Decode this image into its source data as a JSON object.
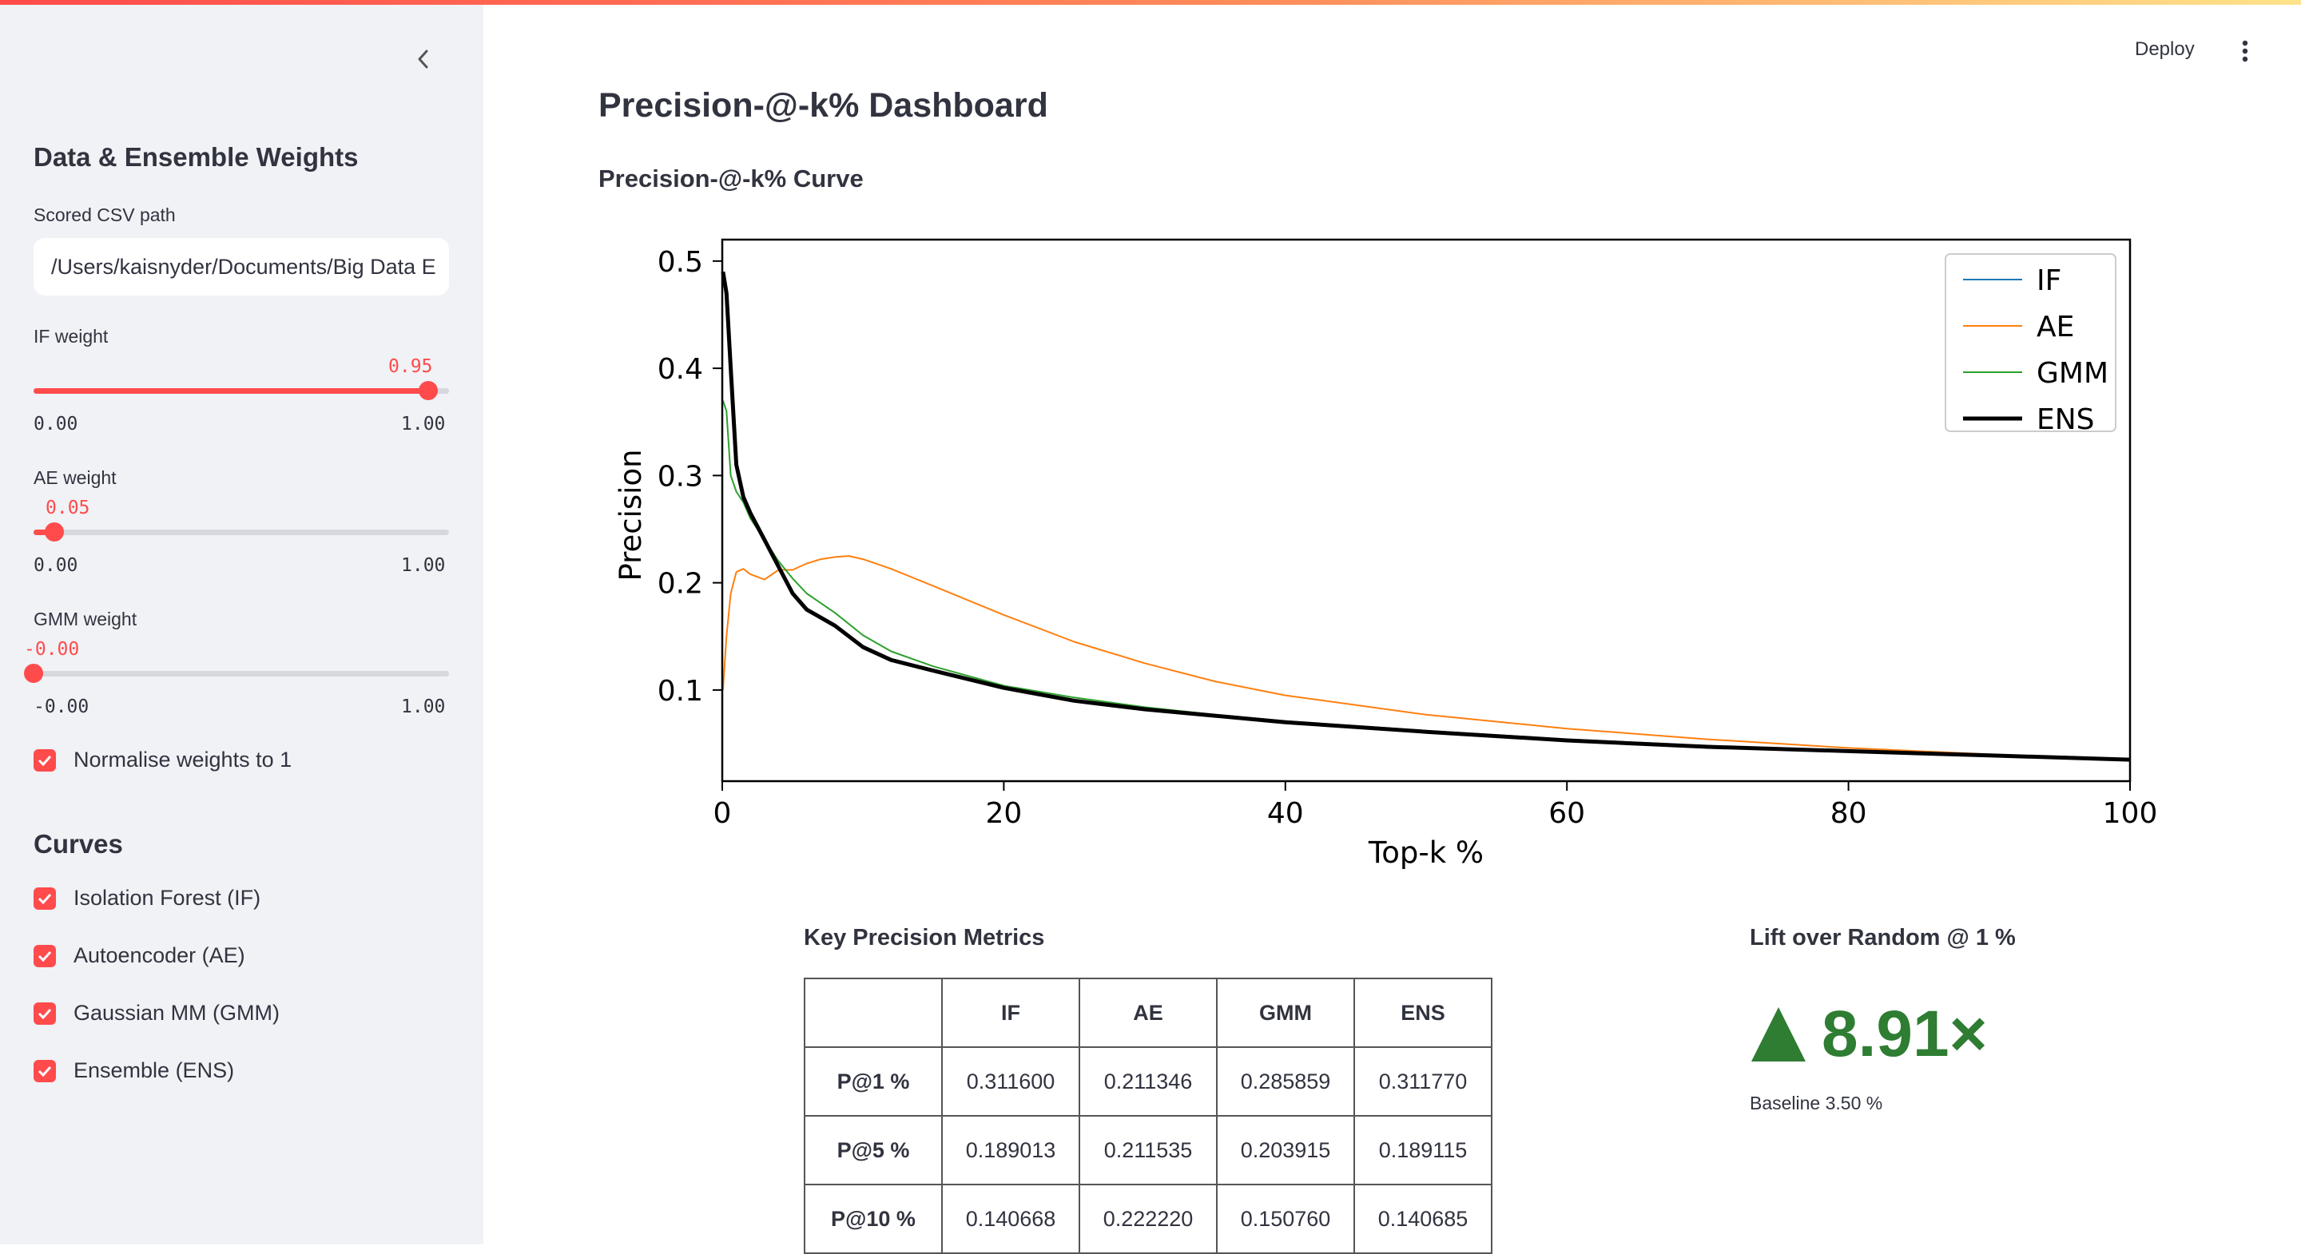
{
  "sidebar": {
    "title": "Data & Ensemble Weights",
    "csv_label": "Scored CSV path",
    "csv_value": "/Users/kaisnyder/Documents/Big Data E",
    "sliders": [
      {
        "label": "IF weight",
        "value": 0.95,
        "value_text": "0.95",
        "min": "0.00",
        "max": "1.00"
      },
      {
        "label": "AE weight",
        "value": 0.05,
        "value_text": "0.05",
        "min": "0.00",
        "max": "1.00"
      },
      {
        "label": "GMM weight",
        "value": 0.0,
        "value_text": "-0.00",
        "min": "-0.00",
        "max": "1.00"
      }
    ],
    "normalise_label": "Normalise weights to 1",
    "normalise_checked": true,
    "curves_title": "Curves",
    "curves": [
      {
        "label": "Isolation Forest (IF)",
        "checked": true
      },
      {
        "label": "Autoencoder (AE)",
        "checked": true
      },
      {
        "label": "Gaussian MM (GMM)",
        "checked": true
      },
      {
        "label": "Ensemble (ENS)",
        "checked": true
      }
    ]
  },
  "header": {
    "deploy_label": "Deploy",
    "menu_icon": "kebab-menu-icon",
    "collapse_icon": "chevron-left-icon"
  },
  "main": {
    "title": "Precision-@-k% Dashboard",
    "chart_title": "Precision-@-k% Curve",
    "metrics_title": "Key Precision Metrics",
    "metrics": {
      "columns": [
        "",
        "IF",
        "AE",
        "GMM",
        "ENS"
      ],
      "rows": [
        {
          "label": "P@1 %",
          "values": [
            "0.311600",
            "0.211346",
            "0.285859",
            "0.311770"
          ]
        },
        {
          "label": "P@5 %",
          "values": [
            "0.189013",
            "0.211535",
            "0.203915",
            "0.189115"
          ]
        },
        {
          "label": "P@10 %",
          "values": [
            "0.140668",
            "0.222220",
            "0.150760",
            "0.140685"
          ]
        }
      ]
    },
    "lift_title": "Lift over Random @ 1 %",
    "lift_value": "8.91×",
    "lift_icon": "triangle-up-icon",
    "lift_color": "#2e7d32",
    "baseline": "Baseline 3.50 %"
  },
  "chart_data": {
    "type": "line",
    "xlabel": "Top-k %",
    "ylabel": "Precision",
    "xlim": [
      0,
      100
    ],
    "ylim": [
      0.015,
      0.52
    ],
    "xticks": [
      0,
      20,
      40,
      60,
      80,
      100
    ],
    "yticks": [
      0.1,
      0.2,
      0.3,
      0.4,
      0.5
    ],
    "legend_position": "top-right",
    "series": [
      {
        "name": "IF",
        "color": "#1f77b4",
        "width": 2,
        "points": [
          [
            0.05,
            0.49
          ],
          [
            0.3,
            0.47
          ],
          [
            0.6,
            0.4
          ],
          [
            1,
            0.31
          ],
          [
            1.5,
            0.28
          ],
          [
            2,
            0.265
          ],
          [
            3,
            0.24
          ],
          [
            4,
            0.215
          ],
          [
            5,
            0.19
          ],
          [
            6,
            0.175
          ],
          [
            8,
            0.16
          ],
          [
            10,
            0.14
          ],
          [
            12,
            0.128
          ],
          [
            15,
            0.118
          ],
          [
            20,
            0.102
          ],
          [
            25,
            0.09
          ],
          [
            30,
            0.082
          ],
          [
            35,
            0.076
          ],
          [
            40,
            0.07
          ],
          [
            50,
            0.061
          ],
          [
            60,
            0.053
          ],
          [
            70,
            0.047
          ],
          [
            80,
            0.043
          ],
          [
            90,
            0.039
          ],
          [
            100,
            0.035
          ]
        ]
      },
      {
        "name": "AE",
        "color": "#ff7f0e",
        "width": 2,
        "points": [
          [
            0.05,
            0.1
          ],
          [
            0.3,
            0.15
          ],
          [
            0.6,
            0.19
          ],
          [
            1,
            0.21
          ],
          [
            1.5,
            0.213
          ],
          [
            2,
            0.208
          ],
          [
            3,
            0.203
          ],
          [
            4,
            0.212
          ],
          [
            5,
            0.212
          ],
          [
            6,
            0.218
          ],
          [
            7,
            0.222
          ],
          [
            8,
            0.224
          ],
          [
            9,
            0.225
          ],
          [
            10,
            0.222
          ],
          [
            12,
            0.213
          ],
          [
            15,
            0.197
          ],
          [
            20,
            0.17
          ],
          [
            25,
            0.145
          ],
          [
            30,
            0.125
          ],
          [
            35,
            0.108
          ],
          [
            40,
            0.095
          ],
          [
            50,
            0.077
          ],
          [
            60,
            0.064
          ],
          [
            70,
            0.054
          ],
          [
            80,
            0.046
          ],
          [
            90,
            0.04
          ],
          [
            100,
            0.035
          ]
        ]
      },
      {
        "name": "GMM",
        "color": "#2ca02c",
        "width": 2,
        "points": [
          [
            0.05,
            0.37
          ],
          [
            0.3,
            0.36
          ],
          [
            0.6,
            0.3
          ],
          [
            1,
            0.285
          ],
          [
            1.5,
            0.275
          ],
          [
            2,
            0.26
          ],
          [
            3,
            0.24
          ],
          [
            4,
            0.22
          ],
          [
            5,
            0.204
          ],
          [
            6,
            0.19
          ],
          [
            8,
            0.172
          ],
          [
            10,
            0.151
          ],
          [
            12,
            0.136
          ],
          [
            15,
            0.122
          ],
          [
            20,
            0.104
          ],
          [
            25,
            0.093
          ],
          [
            30,
            0.084
          ],
          [
            35,
            0.077
          ],
          [
            40,
            0.071
          ],
          [
            50,
            0.062
          ],
          [
            60,
            0.054
          ],
          [
            70,
            0.048
          ],
          [
            80,
            0.043
          ],
          [
            90,
            0.039
          ],
          [
            100,
            0.035
          ]
        ]
      },
      {
        "name": "ENS",
        "color": "#000000",
        "width": 5,
        "points": [
          [
            0.05,
            0.49
          ],
          [
            0.3,
            0.47
          ],
          [
            0.6,
            0.4
          ],
          [
            1,
            0.31
          ],
          [
            1.5,
            0.28
          ],
          [
            2,
            0.265
          ],
          [
            3,
            0.24
          ],
          [
            4,
            0.215
          ],
          [
            5,
            0.19
          ],
          [
            6,
            0.175
          ],
          [
            8,
            0.16
          ],
          [
            10,
            0.14
          ],
          [
            12,
            0.128
          ],
          [
            15,
            0.118
          ],
          [
            20,
            0.102
          ],
          [
            25,
            0.09
          ],
          [
            30,
            0.082
          ],
          [
            35,
            0.076
          ],
          [
            40,
            0.07
          ],
          [
            50,
            0.061
          ],
          [
            60,
            0.053
          ],
          [
            70,
            0.047
          ],
          [
            80,
            0.043
          ],
          [
            90,
            0.039
          ],
          [
            100,
            0.035
          ]
        ]
      }
    ]
  }
}
